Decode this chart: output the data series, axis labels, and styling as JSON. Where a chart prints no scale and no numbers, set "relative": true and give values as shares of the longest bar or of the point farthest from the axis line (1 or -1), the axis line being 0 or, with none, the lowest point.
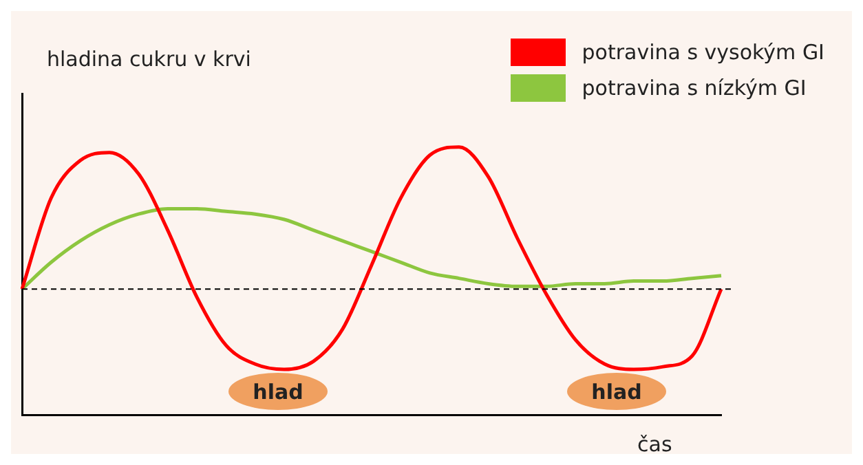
{
  "chart_data": {
    "type": "line",
    "relative": true,
    "ylabel": "hladina cukru v krvi",
    "xlabel": "čas",
    "categories": [
      null,
      null,
      null,
      null,
      null,
      null,
      null,
      null,
      null,
      null,
      null,
      null,
      null,
      null,
      null,
      null,
      null,
      null,
      null,
      null,
      null,
      null,
      null,
      null,
      null
    ],
    "series": [
      {
        "name": "potravina s vysokým GI",
        "color": "#ff0000",
        "values": [
          0.47,
          0.81,
          0.95,
          0.98,
          0.9,
          0.69,
          0.44,
          0.26,
          0.19,
          0.17,
          0.2,
          0.32,
          0.56,
          0.81,
          0.97,
          1.0,
          0.89,
          0.66,
          0.45,
          0.28,
          0.19,
          0.17,
          0.18,
          0.22,
          0.47
        ]
      },
      {
        "name": "potravina s nízkým GI",
        "color": "#8dc63f",
        "values": [
          0.47,
          0.57,
          0.65,
          0.71,
          0.75,
          0.77,
          0.77,
          0.76,
          0.75,
          0.73,
          0.69,
          0.65,
          0.61,
          0.57,
          0.53,
          0.51,
          0.49,
          0.48,
          0.48,
          0.49,
          0.49,
          0.5,
          0.5,
          0.51,
          0.52
        ]
      }
    ],
    "ref_lines": [
      {
        "axis": "y",
        "value": 0.47,
        "line_style": "dashed",
        "color": "#000000"
      }
    ],
    "annotations": [
      "hlad",
      "hlad"
    ],
    "legend": "top right",
    "grid": false,
    "marker": "none",
    "line_style": "solid"
  }
}
